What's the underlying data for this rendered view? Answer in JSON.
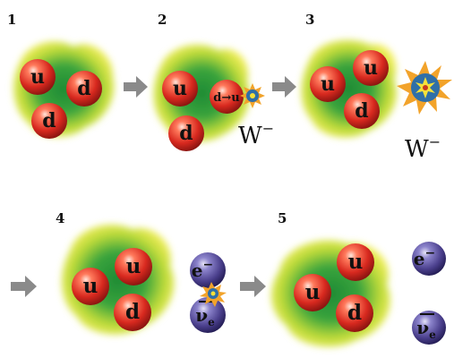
{
  "steps": [
    "1",
    "2",
    "3",
    "4",
    "5"
  ],
  "quark_up": "u",
  "quark_down": "d",
  "transition_label": "d→u",
  "boson_label": "W",
  "boson_charge": "−",
  "electron_label": "e",
  "electron_charge": "−",
  "neutrino_symbol": "ν",
  "neutrino_subscript": "e",
  "colors": {
    "quark_red": "#e0352b",
    "lepton_purple": "#4a3f8c",
    "cloud_green": "#2f9a3a",
    "cloud_yellow": "#f0ea40",
    "arrow_gray": "#8a8a8a"
  }
}
